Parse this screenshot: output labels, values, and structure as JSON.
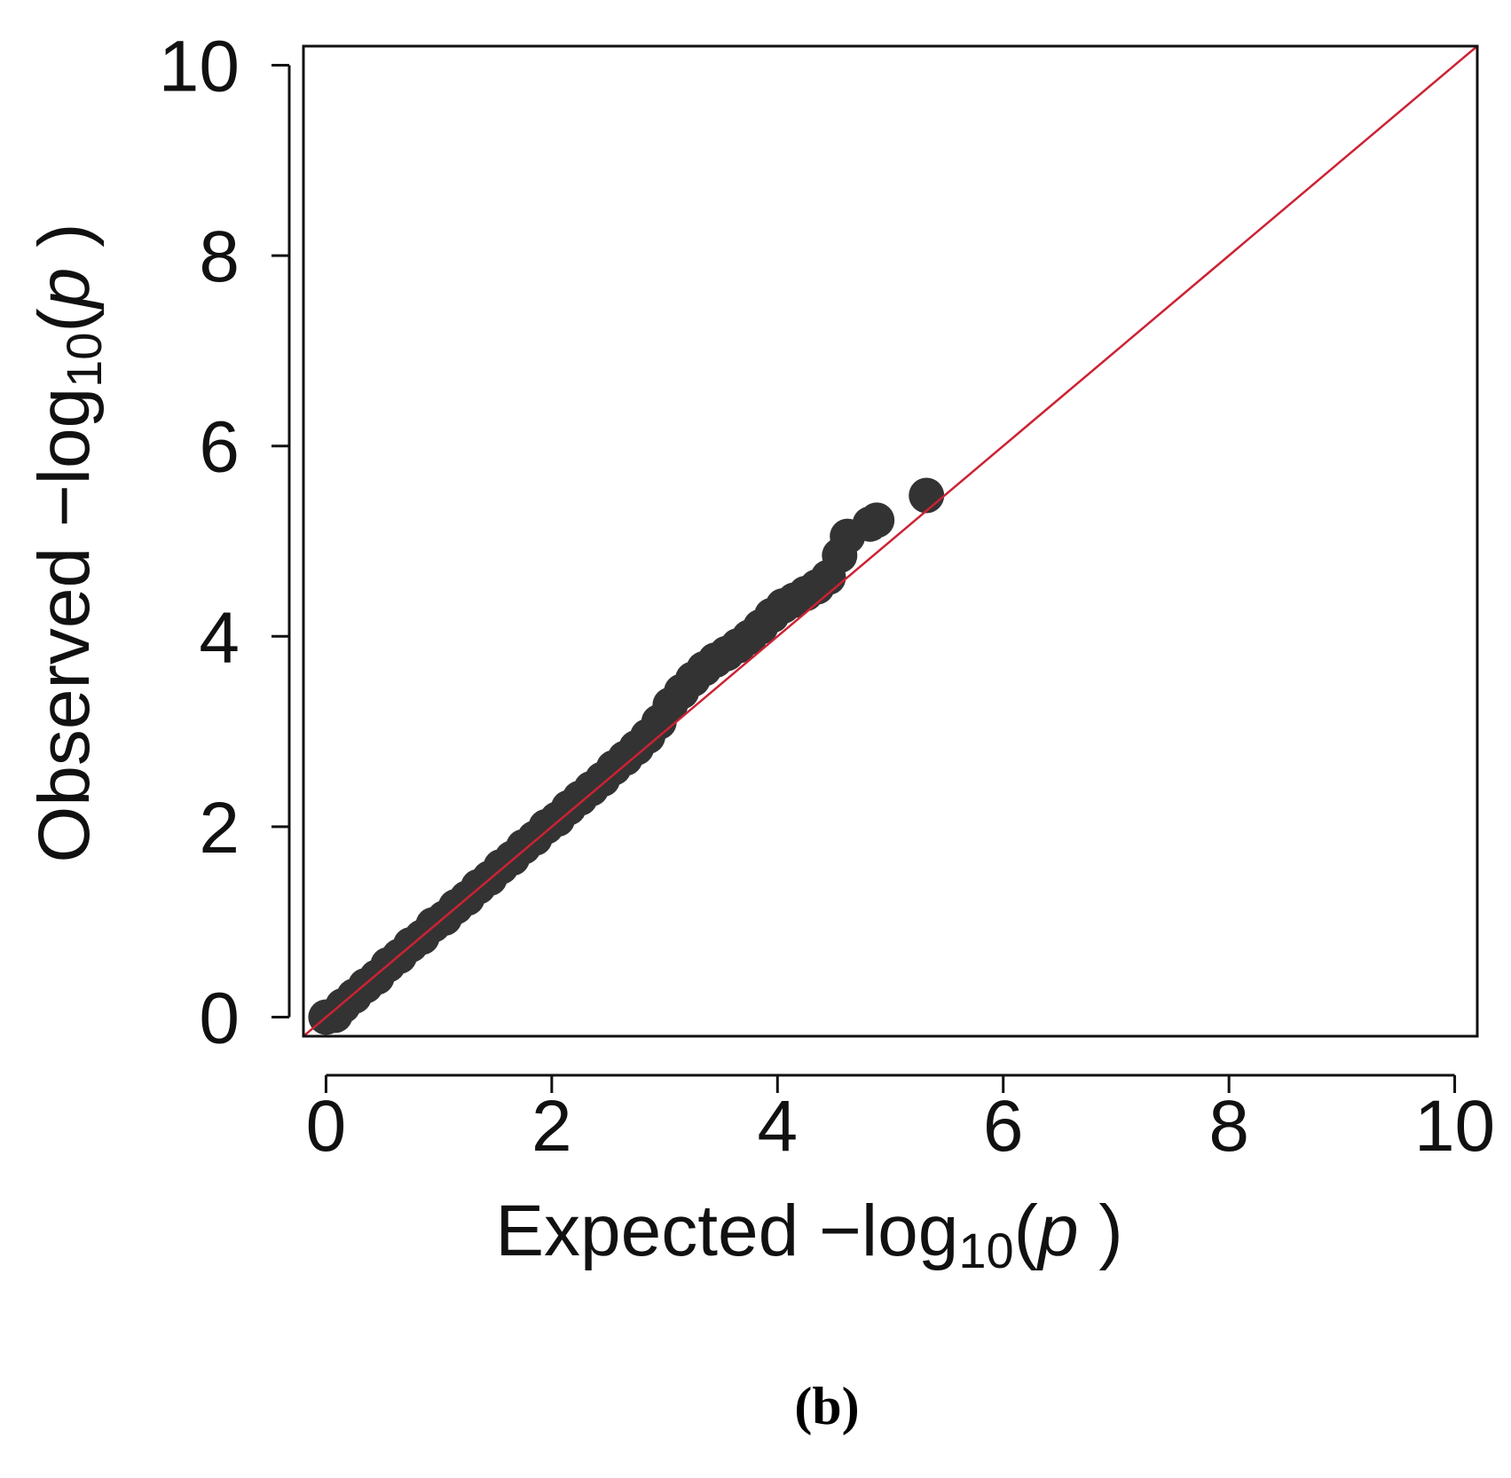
{
  "panel_label": "(b)",
  "chart_data": {
    "type": "scatter",
    "xlabel": {
      "prefix": "Expected  −log",
      "sub": "10",
      "open": "(",
      "var": "p",
      "close": " )"
    },
    "ylabel": {
      "prefix": "Observed  −log",
      "sub": "10",
      "open": "(",
      "var": "p",
      "close": " )"
    },
    "xlim": [
      -0.2,
      10.2
    ],
    "ylim": [
      -0.2,
      10.2
    ],
    "x_ticks": [
      "0",
      "2",
      "4",
      "6",
      "8",
      "10"
    ],
    "y_ticks": [
      "0",
      "2",
      "4",
      "6",
      "8",
      "10"
    ],
    "grid": false,
    "legend": "none",
    "reference_line": {
      "from": [
        -0.4,
        -0.4
      ],
      "to": [
        10.4,
        10.4
      ],
      "color": "#cc2233"
    },
    "point_color": "#333333",
    "series": [
      {
        "points": [
          [
            0.0,
            0.0
          ],
          [
            0.08,
            0.02
          ],
          [
            0.15,
            0.12
          ],
          [
            0.25,
            0.22
          ],
          [
            0.35,
            0.33
          ],
          [
            0.45,
            0.42
          ],
          [
            0.55,
            0.55
          ],
          [
            0.65,
            0.64
          ],
          [
            0.75,
            0.76
          ],
          [
            0.85,
            0.84
          ],
          [
            0.95,
            0.97
          ],
          [
            1.05,
            1.04
          ],
          [
            1.15,
            1.16
          ],
          [
            1.25,
            1.25
          ],
          [
            1.35,
            1.37
          ],
          [
            1.45,
            1.46
          ],
          [
            1.55,
            1.58
          ],
          [
            1.65,
            1.67
          ],
          [
            1.75,
            1.79
          ],
          [
            1.85,
            1.88
          ],
          [
            1.95,
            2.0
          ],
          [
            2.05,
            2.08
          ],
          [
            2.15,
            2.2
          ],
          [
            2.25,
            2.3
          ],
          [
            2.35,
            2.4
          ],
          [
            2.45,
            2.5
          ],
          [
            2.55,
            2.62
          ],
          [
            2.65,
            2.72
          ],
          [
            2.75,
            2.83
          ],
          [
            2.85,
            2.95
          ],
          [
            2.95,
            3.1
          ],
          [
            3.05,
            3.28
          ],
          [
            3.15,
            3.42
          ],
          [
            3.25,
            3.55
          ],
          [
            3.35,
            3.66
          ],
          [
            3.45,
            3.75
          ],
          [
            3.55,
            3.82
          ],
          [
            3.65,
            3.9
          ],
          [
            3.75,
            3.99
          ],
          [
            3.85,
            4.1
          ],
          [
            3.95,
            4.22
          ],
          [
            4.05,
            4.32
          ],
          [
            4.15,
            4.38
          ],
          [
            4.25,
            4.45
          ],
          [
            4.35,
            4.52
          ],
          [
            4.45,
            4.62
          ],
          [
            4.55,
            4.85
          ],
          [
            4.62,
            5.05
          ],
          [
            4.82,
            5.18
          ],
          [
            4.88,
            5.22
          ],
          [
            5.32,
            5.48
          ]
        ]
      }
    ]
  }
}
